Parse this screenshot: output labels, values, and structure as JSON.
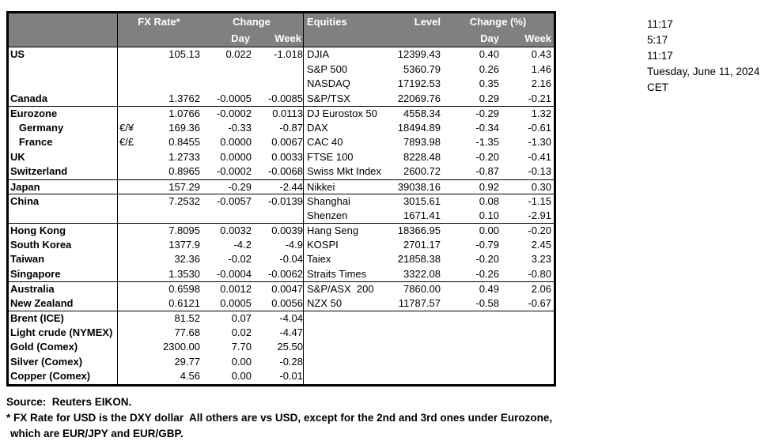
{
  "colors": {
    "header_bg": "#808080",
    "header_text": "#ffffff",
    "border": "#000000",
    "background": "#ffffff"
  },
  "header": {
    "fx_rate": "FX Rate*",
    "change": "Change",
    "day": "Day",
    "week": "Week",
    "equities": "Equities",
    "level": "Level",
    "change_pct": "Change (%)",
    "eq_day": "Day",
    "eq_week": "Week"
  },
  "timestamps": [
    "11:17",
    "5:17",
    "11:17",
    "Tuesday, June 11, 2024",
    "CET"
  ],
  "footnotes": {
    "source": "Source:  Reuters EIKON.",
    "note1": "* FX Rate for USD is the DXY dollar  All others are vs USD, except for the 2nd and 3rd ones under Eurozone,",
    "note2": "which are EUR/JPY and EUR/GBP."
  },
  "table": {
    "sections": [
      {
        "rows": [
          {
            "fx_label": "US",
            "fx_pair": "",
            "fx_rate": "105.13",
            "fx_day": "0.022",
            "fx_week": "-1.018",
            "eq_label": "DJIA",
            "eq_level": "12399.43",
            "eq_day": "0.40",
            "eq_week": "0.43"
          },
          {
            "fx_label": "",
            "fx_pair": "",
            "fx_rate": "",
            "fx_day": "",
            "fx_week": "",
            "eq_label": "S&P 500",
            "eq_level": "5360.79",
            "eq_day": "0.26",
            "eq_week": "1.46"
          },
          {
            "fx_label": "",
            "fx_pair": "",
            "fx_rate": "",
            "fx_day": "",
            "fx_week": "",
            "eq_label": "NASDAQ",
            "eq_level": "17192.53",
            "eq_day": "0.35",
            "eq_week": "2.16"
          },
          {
            "fx_label": "Canada",
            "fx_pair": "",
            "fx_rate": "1.3762",
            "fx_day": "-0.0005",
            "fx_week": "-0.0085",
            "eq_label": "S&P/TSX",
            "eq_level": "22069.76",
            "eq_day": "0.29",
            "eq_week": "-0.21"
          }
        ]
      },
      {
        "rows": [
          {
            "fx_label": "Eurozone",
            "fx_pair": "",
            "fx_rate": "1.0766",
            "fx_day": "-0.0002",
            "fx_week": "0.0113",
            "eq_label": "DJ Eurostox 50",
            "eq_level": "4558.34",
            "eq_day": "-0.29",
            "eq_week": "1.32"
          },
          {
            "fx_label": "   Germany",
            "fx_pair": "€/¥",
            "fx_rate": "169.36",
            "fx_day": "-0.33",
            "fx_week": "-0.87",
            "eq_label": "DAX",
            "eq_level": "18494.89",
            "eq_day": "-0.34",
            "eq_week": "-0.61"
          },
          {
            "fx_label": "   France",
            "fx_pair": "€/£",
            "fx_rate": "0.8455",
            "fx_day": "0.0000",
            "fx_week": "0.0067",
            "eq_label": "CAC 40",
            "eq_level": "7893.98",
            "eq_day": "-1.35",
            "eq_week": "-1.30"
          },
          {
            "fx_label": "UK",
            "fx_pair": "",
            "fx_rate": "1.2733",
            "fx_day": "0.0000",
            "fx_week": "0.0033",
            "eq_label": "FTSE 100",
            "eq_level": "8228.48",
            "eq_day": "-0.20",
            "eq_week": "-0.41"
          },
          {
            "fx_label": "Switzerland",
            "fx_pair": "",
            "fx_rate": "0.8965",
            "fx_day": "-0.0002",
            "fx_week": "-0.0068",
            "eq_label": "Swiss Mkt Index",
            "eq_level": "2600.72",
            "eq_day": "-0.87",
            "eq_week": "-0.13"
          }
        ]
      },
      {
        "rows": [
          {
            "fx_label": "Japan",
            "fx_pair": "",
            "fx_rate": "157.29",
            "fx_day": "-0.29",
            "fx_week": "-2.44",
            "eq_label": "Nikkei",
            "eq_level": "39038.16",
            "eq_day": "0.92",
            "eq_week": "0.30"
          }
        ]
      },
      {
        "rows": [
          {
            "fx_label": "China",
            "fx_pair": "",
            "fx_rate": "7.2532",
            "fx_day": "-0.0057",
            "fx_week": "-0.0139",
            "eq_label": "Shanghai",
            "eq_level": "3015.61",
            "eq_day": "0.08",
            "eq_week": "-1.15"
          },
          {
            "fx_label": "",
            "fx_pair": "",
            "fx_rate": "",
            "fx_day": "",
            "fx_week": "",
            "eq_label": "Shenzen",
            "eq_level": "1671.41",
            "eq_day": "0.10",
            "eq_week": "-2.91"
          }
        ]
      },
      {
        "rows": [
          {
            "fx_label": "Hong Kong",
            "fx_pair": "",
            "fx_rate": "7.8095",
            "fx_day": "0.0032",
            "fx_week": "0.0039",
            "eq_label": "Hang Seng",
            "eq_level": "18366.95",
            "eq_day": "0.00",
            "eq_week": "-0.20"
          },
          {
            "fx_label": "South Korea",
            "fx_pair": "",
            "fx_rate": "1377.9",
            "fx_day": "-4.2",
            "fx_week": "-4.9",
            "eq_label": "KOSPI",
            "eq_level": "2701.17",
            "eq_day": "-0.79",
            "eq_week": "2.45"
          },
          {
            "fx_label": "Taiwan",
            "fx_pair": "",
            "fx_rate": "32.36",
            "fx_day": "-0.02",
            "fx_week": "-0.04",
            "eq_label": "Taiex",
            "eq_level": "21858.38",
            "eq_day": "-0.20",
            "eq_week": "3.23"
          },
          {
            "fx_label": "Singapore",
            "fx_pair": "",
            "fx_rate": "1.3530",
            "fx_day": "-0.0004",
            "fx_week": "-0.0062",
            "eq_label": "Straits Times",
            "eq_level": "3322.08",
            "eq_day": "-0.26",
            "eq_week": "-0.80"
          }
        ]
      },
      {
        "rows": [
          {
            "fx_label": "Australia",
            "fx_pair": "",
            "fx_rate": "0.6598",
            "fx_day": "0.0012",
            "fx_week": "0.0047",
            "eq_label": "S&P/ASX  200",
            "eq_level": "7860.00",
            "eq_day": "0.49",
            "eq_week": "2.06"
          },
          {
            "fx_label": "New Zealand",
            "fx_pair": "",
            "fx_rate": "0.6121",
            "fx_day": "0.0005",
            "fx_week": "0.0056",
            "eq_label": "NZX 50",
            "eq_level": "11787.57",
            "eq_day": "-0.58",
            "eq_week": "-0.67"
          }
        ]
      },
      {
        "rows": [
          {
            "fx_label": "Brent (ICE)",
            "fx_pair": "",
            "fx_rate": "81.52",
            "fx_day": "0.07",
            "fx_week": "-4.04",
            "eq_label": "",
            "eq_level": "",
            "eq_day": "",
            "eq_week": ""
          },
          {
            "fx_label": "Light crude (NYMEX)",
            "fx_pair": "",
            "fx_rate": "77.68",
            "fx_day": "0.02",
            "fx_week": "-4.47",
            "eq_label": "",
            "eq_level": "",
            "eq_day": "",
            "eq_week": ""
          },
          {
            "fx_label": "Gold (Comex)",
            "fx_pair": "",
            "fx_rate": "2300.00",
            "fx_day": "7.70",
            "fx_week": "25.50",
            "eq_label": "",
            "eq_level": "",
            "eq_day": "",
            "eq_week": ""
          },
          {
            "fx_label": "Silver (Comex)",
            "fx_pair": "",
            "fx_rate": "29.77",
            "fx_day": "0.00",
            "fx_week": "-0.28",
            "eq_label": "",
            "eq_level": "",
            "eq_day": "",
            "eq_week": ""
          },
          {
            "fx_label": "Copper (Comex)",
            "fx_pair": "",
            "fx_rate": "4.56",
            "fx_day": "0.00",
            "fx_week": "-0.01",
            "eq_label": "",
            "eq_level": "",
            "eq_day": "",
            "eq_week": ""
          }
        ]
      }
    ]
  }
}
